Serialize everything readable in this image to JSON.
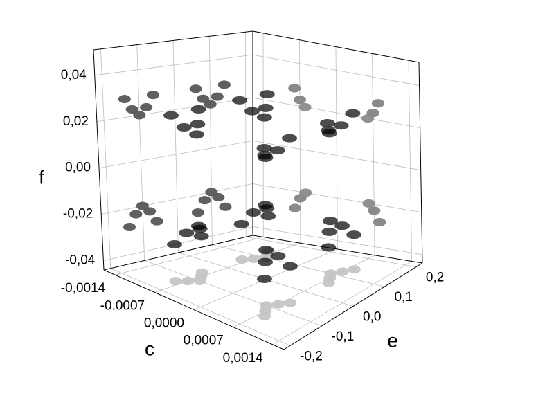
{
  "chart_data": {
    "type": "scatter3d",
    "xlabel": "c",
    "ylabel": "e",
    "zlabel": "f",
    "xlim": [
      -0.0016,
      0.0016
    ],
    "ylim": [
      -0.22,
      0.22
    ],
    "zlim": [
      -0.044,
      0.051
    ],
    "xticks": [
      {
        "value": -0.0014,
        "label": "-0,0014"
      },
      {
        "value": -0.0007,
        "label": "-0,0007"
      },
      {
        "value": 0,
        "label": "0,0000"
      },
      {
        "value": 0.0007,
        "label": "0,0007"
      },
      {
        "value": 0.0014,
        "label": "0,0014"
      }
    ],
    "yticks": [
      {
        "value": -0.2,
        "label": "-0,2"
      },
      {
        "value": -0.1,
        "label": "-0,1"
      },
      {
        "value": 0,
        "label": "0,0"
      },
      {
        "value": 0.1,
        "label": "0,1"
      },
      {
        "value": 0.2,
        "label": "0,2"
      }
    ],
    "zticks": [
      {
        "value": -0.04,
        "label": "-0,04"
      },
      {
        "value": -0.02,
        "label": "-0,02"
      },
      {
        "value": 0,
        "label": "0,00"
      },
      {
        "value": 0.02,
        "label": "0,02"
      },
      {
        "value": 0.04,
        "label": "0,04"
      }
    ],
    "grid": true,
    "color": "#000000",
    "projection_colors": [
      "#555555",
      "#8a8a8a",
      "#c4c4c4"
    ],
    "x": [
      -0.0008,
      -0.0007,
      -0.0006,
      -0.0007,
      -0.0008,
      -0.0008,
      -0.0007,
      -0.0006,
      -0.0007,
      -0.0008,
      -0.0008,
      -0.0007,
      -0.0006,
      -0.0007,
      -0.0008,
      -0.0008,
      -0.0007,
      -0.0006,
      -0.0007,
      -0.0008,
      0.0008,
      0.0007,
      0.0006,
      0.0007,
      0.0008,
      0.0008,
      0.0007,
      0.0006,
      0.0007,
      0.0008,
      0.0008,
      0.0007,
      0.0006,
      0.0007,
      0.0008,
      0.0008,
      0.0007,
      0.0006,
      0.0007,
      0.0008
    ],
    "y": [
      -0.14,
      -0.12,
      -0.1,
      -0.08,
      -0.06,
      -0.14,
      -0.12,
      -0.1,
      -0.08,
      -0.06,
      0.06,
      0.08,
      0.1,
      0.12,
      0.14,
      0.06,
      0.08,
      0.1,
      0.12,
      0.14,
      -0.14,
      -0.12,
      -0.1,
      -0.08,
      -0.06,
      -0.14,
      -0.12,
      -0.1,
      -0.08,
      -0.06,
      0.06,
      0.08,
      0.1,
      0.12,
      0.14,
      0.06,
      0.08,
      0.1,
      0.12,
      0.14
    ],
    "z": [
      -0.028,
      -0.023,
      -0.02,
      -0.023,
      -0.028,
      0.028,
      0.023,
      0.02,
      0.023,
      0.028,
      -0.028,
      -0.023,
      -0.02,
      -0.023,
      -0.028,
      0.028,
      0.023,
      0.02,
      0.023,
      0.028,
      -0.028,
      -0.023,
      -0.02,
      -0.023,
      -0.028,
      0.028,
      0.023,
      0.02,
      0.023,
      0.028,
      -0.028,
      -0.023,
      -0.02,
      -0.023,
      -0.028,
      0.028,
      0.023,
      0.02,
      0.023,
      0.028
    ]
  }
}
